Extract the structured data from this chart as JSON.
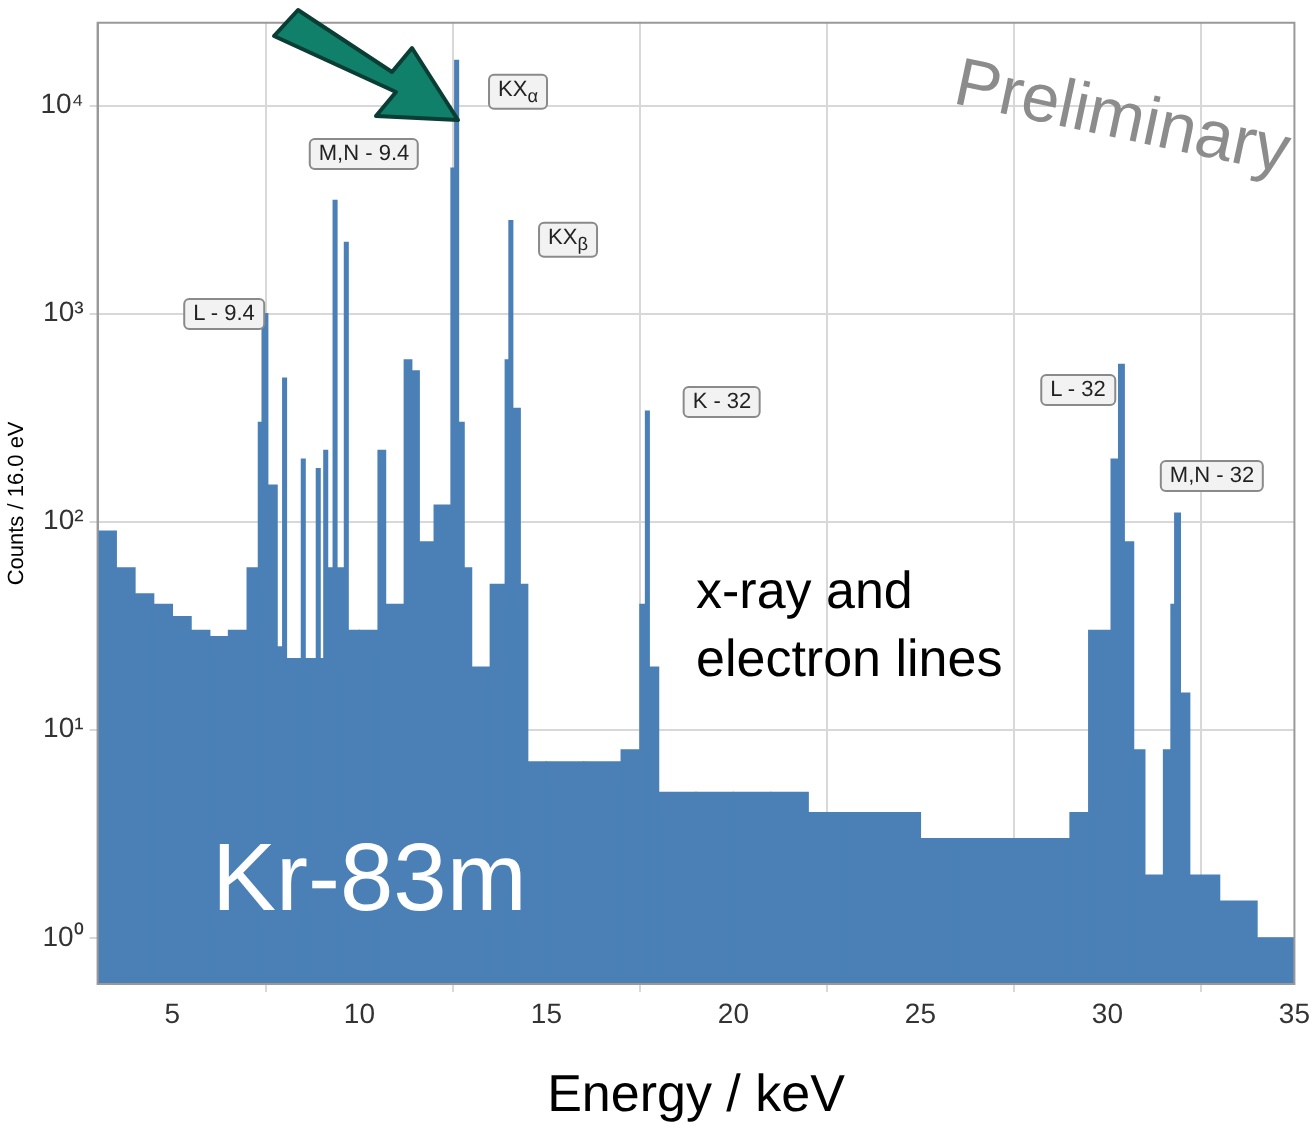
{
  "chart_data": {
    "type": "histogram",
    "xlabel": "Energy / keV",
    "ylabel": "Counts / 16.0 eV",
    "color": "#4a80b6",
    "bins": [
      3,
      3.5,
      4,
      4.5,
      5,
      5.5,
      6,
      6.5,
      7,
      7.3,
      7.4,
      7.55,
      7.8,
      7.95,
      8.05,
      8.45,
      8.55,
      8.85,
      8.95,
      9.05,
      9.15,
      9.3,
      9.4,
      9.6,
      9.7,
      10,
      10.5,
      10.7,
      11.2,
      11.4,
      11.6,
      12,
      12.45,
      12.55,
      12.65,
      12.8,
      13,
      13.5,
      13.9,
      14,
      14.1,
      14.3,
      14.5,
      15,
      16,
      17,
      17.5,
      17.65,
      17.75,
      18,
      19,
      20,
      21,
      22,
      23,
      24,
      25,
      26,
      27,
      28,
      29,
      29.5,
      30.1,
      30.3,
      30.45,
      30.7,
      31,
      31.5,
      31.7,
      31.8,
      31.95,
      32.2,
      33,
      34,
      35
    ],
    "values": [
      90,
      60,
      45,
      40,
      35,
      30,
      28,
      30,
      60,
      300,
      1000,
      150,
      25,
      490,
      22,
      200,
      22,
      180,
      22,
      220,
      60,
      3500,
      60,
      2200,
      30,
      30,
      220,
      40,
      600,
      530,
      80,
      120,
      5000,
      16500,
      300,
      60,
      20,
      50,
      600,
      2800,
      350,
      50,
      7,
      7,
      7,
      8,
      40,
      340,
      20,
      5,
      5,
      5,
      5,
      4,
      4,
      4,
      3,
      3,
      3,
      3,
      4,
      30,
      200,
      570,
      80,
      8,
      2,
      8,
      40,
      110,
      15,
      2,
      1.5,
      1
    ],
    "xlim": [
      3,
      35
    ],
    "xticks": [
      5,
      10,
      15,
      20,
      25,
      30,
      35
    ],
    "ylim": [
      0.6,
      25000
    ],
    "yticks": [
      {
        "value": 1,
        "label": "10⁰"
      },
      {
        "value": 10,
        "label": "10¹"
      },
      {
        "value": 100,
        "label": "10²"
      },
      {
        "value": 1000,
        "label": "10³"
      },
      {
        "value": 10000,
        "label": "10⁴"
      }
    ],
    "log": "y",
    "grid": true,
    "legend": false,
    "annotations": [
      "L - 9.4",
      "M,N - 9.4",
      "KX$_{α}$",
      "KX$_{β}$",
      "K - 32",
      "L - 32",
      "M,N - 32",
      "Preliminary",
      "x-ray and electron lines",
      "Kr-83m"
    ]
  }
}
